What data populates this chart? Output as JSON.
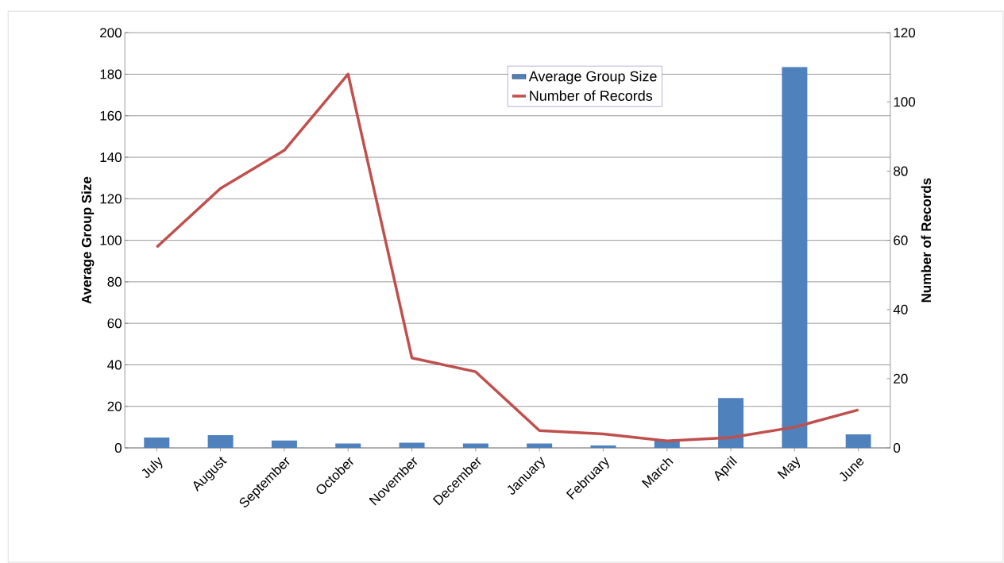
{
  "chart_data": {
    "type": "bar",
    "ylabel": "Average Group Size",
    "y2label": "Number of Records",
    "categories": [
      "July",
      "August",
      "September",
      "October",
      "November",
      "December",
      "January",
      "February",
      "March",
      "April",
      "May",
      "June"
    ],
    "series": [
      {
        "name": "Average Group Size",
        "color": "#4f81bd",
        "values": [
          5.0,
          6.1,
          3.5,
          2.1,
          2.5,
          2.1,
          2.1,
          1.2,
          3.5,
          24,
          183.5,
          6.5
        ]
      },
      {
        "name": "Number of Records",
        "type": "line",
        "axis": "y2",
        "color": "#c0504d",
        "values": [
          58,
          75,
          86,
          108,
          26,
          22,
          5,
          4,
          2,
          3,
          6,
          11
        ]
      }
    ],
    "ylim": [
      0,
      200
    ],
    "yticks": [
      0,
      20,
      40,
      60,
      80,
      100,
      120,
      140,
      160,
      180,
      200
    ],
    "y2lim": [
      0,
      120
    ],
    "y2ticks": [
      0,
      20,
      40,
      60,
      80,
      100,
      120
    ],
    "grid": "y",
    "legend": "top",
    "marker": "none",
    "line_style": "solid"
  }
}
